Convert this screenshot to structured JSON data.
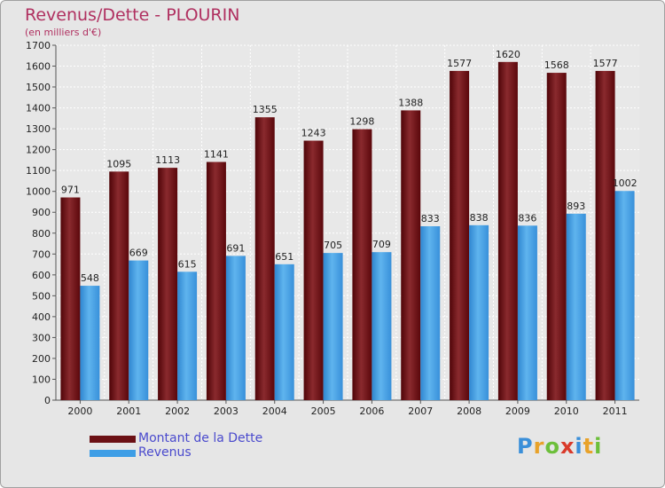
{
  "title": "Revenus/Dette - PLOURIN",
  "subtitle": "(en milliers d'€)",
  "colors": {
    "dette": "#6b1014",
    "revenus": "#3e9ee6",
    "title": "#b03060",
    "legend_text": "#4a4acd",
    "background": "#e6e6e6"
  },
  "legend": {
    "dette": "Montant de la Dette",
    "revenus": "Revenus"
  },
  "logo": {
    "letters": [
      "P",
      "r",
      "o",
      "x",
      "i",
      "t",
      "i"
    ],
    "colors": [
      "#3a8fd9",
      "#e8a22a",
      "#6cbf3a",
      "#d93a2a",
      "#3a8fd9",
      "#e8a22a",
      "#6cbf3a"
    ]
  },
  "chart_data": {
    "type": "bar",
    "title": "Revenus/Dette - PLOURIN",
    "subtitle": "(en milliers d'€)",
    "categories": [
      "2000",
      "2001",
      "2002",
      "2003",
      "2004",
      "2005",
      "2006",
      "2007",
      "2008",
      "2009",
      "2010",
      "2011"
    ],
    "series": [
      {
        "name": "Montant de la Dette",
        "values": [
          971,
          1095,
          1113,
          1141,
          1355,
          1243,
          1298,
          1388,
          1577,
          1620,
          1568,
          1577
        ]
      },
      {
        "name": "Revenus",
        "values": [
          548,
          669,
          615,
          691,
          651,
          705,
          709,
          833,
          838,
          836,
          893,
          1002
        ]
      }
    ],
    "ylim": [
      0,
      1700
    ],
    "yticks": [
      0,
      100,
      200,
      300,
      400,
      500,
      600,
      700,
      800,
      900,
      1000,
      1100,
      1200,
      1300,
      1400,
      1500,
      1600,
      1700
    ],
    "grid": true,
    "legend": "bottom-left"
  }
}
